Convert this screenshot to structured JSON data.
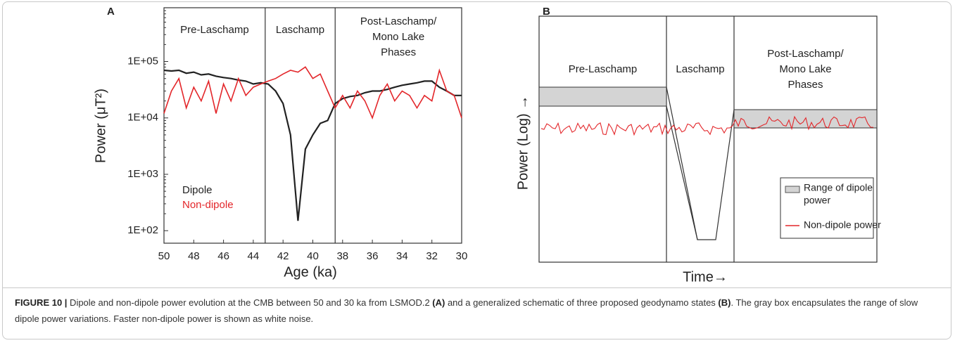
{
  "chart_data": {
    "type": "line",
    "panel_label": "A",
    "xlabel": "Age (ka)",
    "ylabel": "Power (μT²)",
    "yscale": "log",
    "xlim": [
      50,
      30
    ],
    "ylim": [
      60,
      900000
    ],
    "xticks": [
      50,
      48,
      46,
      44,
      42,
      40,
      38,
      36,
      34,
      32,
      30
    ],
    "yticks": [
      {
        "value": 100,
        "label": "1E+02"
      },
      {
        "value": 1000,
        "label": "1E+03"
      },
      {
        "value": 10000,
        "label": "1E+04"
      },
      {
        "value": 100000,
        "label": "1E+05"
      }
    ],
    "phase_boundaries": [
      43.2,
      38.5
    ],
    "phase_labels": [
      [
        "Pre-Laschamp"
      ],
      [
        "Laschamp"
      ],
      [
        "Post-Laschamp/",
        "Mono Lake",
        "Phases"
      ]
    ],
    "x": [
      50,
      49.5,
      49,
      48.5,
      48,
      47.5,
      47,
      46.5,
      46,
      45.5,
      45,
      44.5,
      44,
      43.5,
      43,
      42.5,
      42,
      41.5,
      41,
      40.5,
      40,
      39.5,
      39,
      38.5,
      38,
      37.5,
      37,
      36.5,
      36,
      35.5,
      35,
      34.5,
      34,
      33.5,
      33,
      32.5,
      32,
      31.5,
      31,
      30.5,
      30
    ],
    "series": [
      {
        "name": "Dipole",
        "color": "#222222",
        "values": [
          70000,
          68000,
          70000,
          62000,
          65000,
          58000,
          60000,
          55000,
          52000,
          50000,
          47000,
          45000,
          40000,
          42000,
          40000,
          30000,
          18000,
          5000,
          150,
          2800,
          5000,
          8000,
          9000,
          18000,
          22000,
          24000,
          25000,
          28000,
          30000,
          30000,
          32000,
          35000,
          38000,
          40000,
          42000,
          45000,
          45000,
          35000,
          30000,
          25000,
          25000
        ]
      },
      {
        "name": "Non-dipole",
        "color": "#e3262a",
        "values": [
          12000,
          30000,
          50000,
          15000,
          35000,
          20000,
          45000,
          12000,
          40000,
          20000,
          50000,
          25000,
          35000,
          40000,
          45000,
          50000,
          60000,
          70000,
          65000,
          80000,
          50000,
          60000,
          30000,
          15000,
          25000,
          15000,
          30000,
          20000,
          10000,
          25000,
          40000,
          20000,
          30000,
          25000,
          15000,
          25000,
          20000,
          70000,
          30000,
          25000,
          10000
        ]
      }
    ]
  },
  "panel_b": {
    "panel_label": "B",
    "ylabel": "Power (Log) →",
    "xlabel": "Time→",
    "phase_labels": [
      [
        "Pre-Laschamp"
      ],
      [
        "Laschamp"
      ],
      [
        "Post-Laschamp/",
        "Mono Lake",
        "Phases"
      ]
    ],
    "legend": [
      [
        "Range of dipole",
        "power"
      ],
      [
        "Non-dipole power"
      ]
    ]
  },
  "caption": {
    "segments": [
      "FIGURE 10 |",
      " Dipole and non-dipole power evolution at the CMB between 50 and 30 ka from LSMOD.2 ",
      "(A)",
      " and a generalized schematic of three proposed geodynamo states ",
      "(B)",
      ". The gray box encapsulates the range of slow dipole power variations. Faster non-dipole power is shown as white noise."
    ]
  }
}
